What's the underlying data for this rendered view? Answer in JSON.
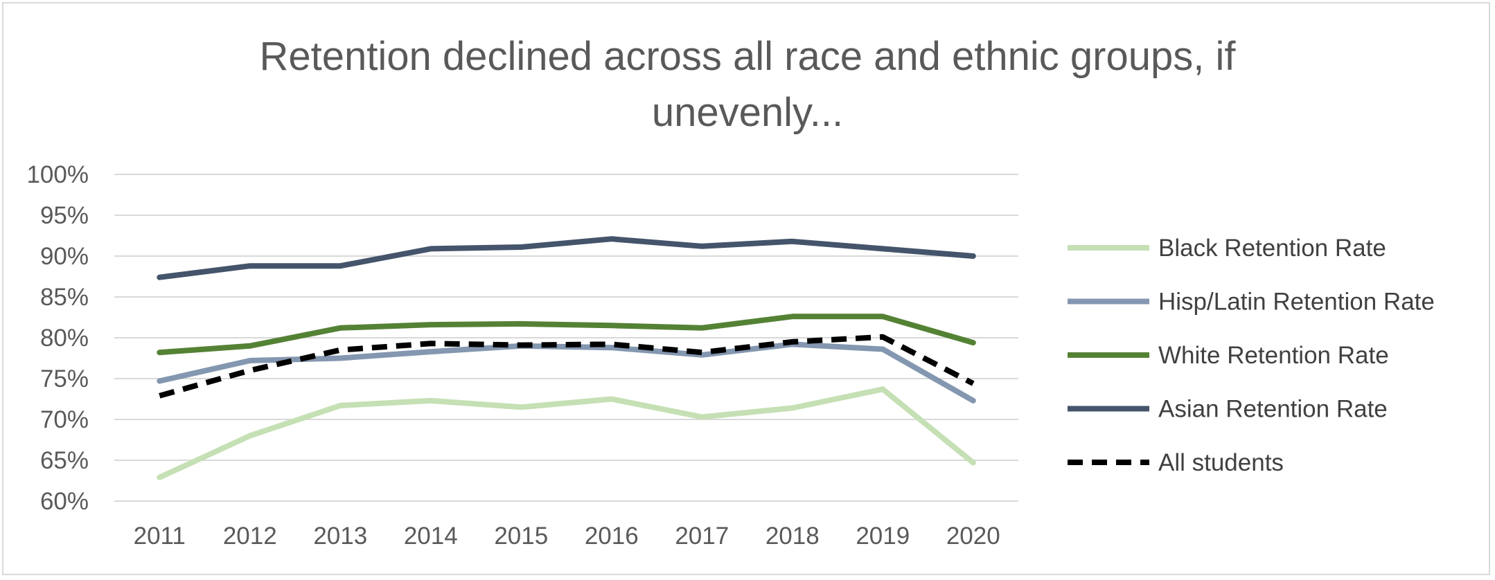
{
  "chart_data": {
    "type": "line",
    "title_lines": [
      "Retention declined across all race and ethnic groups, if",
      "unevenly..."
    ],
    "xlabel": "",
    "ylabel": "",
    "x": [
      "2011",
      "2012",
      "2013",
      "2014",
      "2015",
      "2016",
      "2017",
      "2018",
      "2019",
      "2020"
    ],
    "ylim": [
      0.6,
      1.0
    ],
    "y_ticks": [
      "60%",
      "65%",
      "70%",
      "75%",
      "80%",
      "85%",
      "90%",
      "95%",
      "100%"
    ],
    "grid": true,
    "legend_position": "right",
    "series": [
      {
        "name": "Black Retention Rate",
        "color": "#c5e0b4",
        "dash": false,
        "values": [
          0.629,
          0.68,
          0.717,
          0.723,
          0.715,
          0.725,
          0.703,
          0.714,
          0.737,
          0.647
        ]
      },
      {
        "name": "Hisp/Latin Retention Rate",
        "color": "#8497b0",
        "dash": false,
        "values": [
          0.747,
          0.772,
          0.775,
          0.783,
          0.79,
          0.788,
          0.779,
          0.792,
          0.786,
          0.723
        ]
      },
      {
        "name": "White Retention  Rate",
        "color": "#548235",
        "dash": false,
        "values": [
          0.782,
          0.79,
          0.812,
          0.816,
          0.817,
          0.815,
          0.812,
          0.826,
          0.826,
          0.794
        ]
      },
      {
        "name": "Asian Retention Rate",
        "color": "#44546a",
        "dash": false,
        "values": [
          0.874,
          0.888,
          0.888,
          0.909,
          0.911,
          0.921,
          0.912,
          0.918,
          0.909,
          0.9
        ]
      },
      {
        "name": "All students",
        "color": "#000000",
        "dash": true,
        "values": [
          0.729,
          0.76,
          0.785,
          0.793,
          0.791,
          0.792,
          0.782,
          0.795,
          0.801,
          0.744
        ]
      }
    ]
  }
}
